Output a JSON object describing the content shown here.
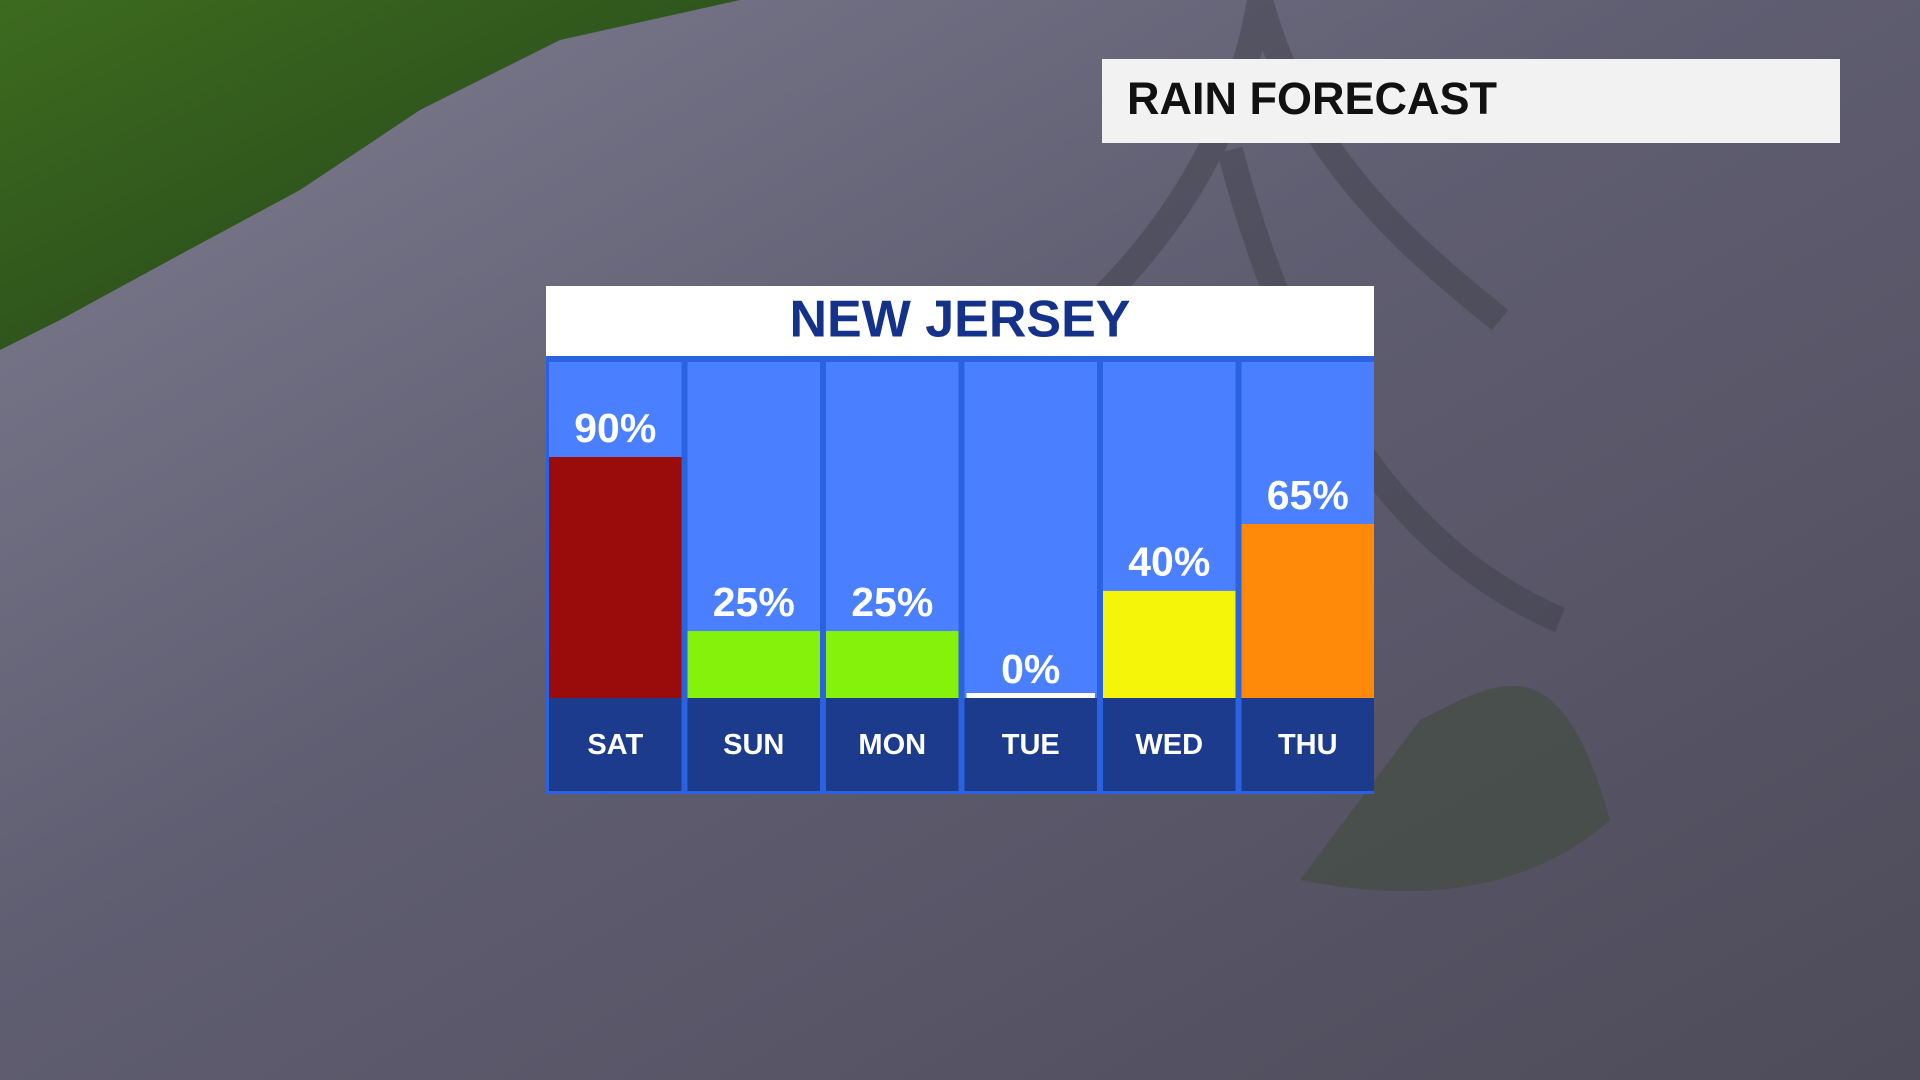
{
  "header": {
    "title": "RAIN FORECAST"
  },
  "chart_data": {
    "type": "bar",
    "title": "NEW JERSEY",
    "categories": [
      "SAT",
      "SUN",
      "MON",
      "TUE",
      "WED",
      "THU"
    ],
    "values": [
      90,
      25,
      25,
      0,
      40,
      65
    ],
    "value_labels": [
      "90%",
      "25%",
      "25%",
      "0%",
      "40%",
      "65%"
    ],
    "colors": [
      "#9a0b0b",
      "#84f20a",
      "#84f20a",
      "#ffffff",
      "#f5f50a",
      "#ff8a0a"
    ]
  }
}
